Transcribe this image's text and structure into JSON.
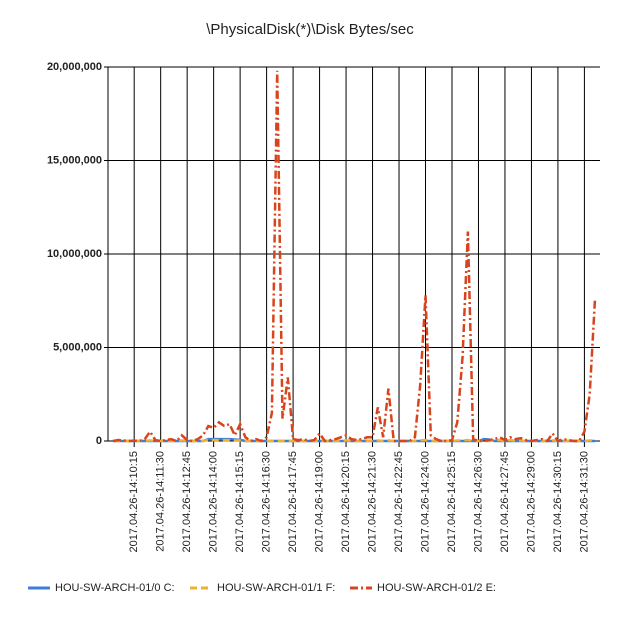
{
  "chart_data": {
    "type": "line",
    "title": "\\PhysicalDisk(*)\\Disk Bytes/sec",
    "categories": [
      null,
      null,
      null,
      null,
      "2017.04.26-14:10:15",
      null,
      null,
      null,
      null,
      "2017.04.26-14:11:30",
      null,
      null,
      null,
      null,
      "2017.04.26-14:12:45",
      null,
      null,
      null,
      null,
      "2017.04.26-14:14:00",
      null,
      null,
      null,
      null,
      "2017.04.26-14:15:15",
      null,
      null,
      null,
      null,
      "2017.04.26-14:16:30",
      null,
      null,
      null,
      null,
      "2017.04.26-14:17:45",
      null,
      null,
      null,
      null,
      "2017.04.26-14:19:00",
      null,
      null,
      null,
      null,
      "2017.04.26-14:20:15",
      null,
      null,
      null,
      null,
      "2017.04.26-14:21:30",
      null,
      null,
      null,
      null,
      "2017.04.26-14:22:45",
      null,
      null,
      null,
      null,
      "2017.04.26-14:24:00",
      null,
      null,
      null,
      null,
      "2017.04.26-14:25:15",
      null,
      null,
      null,
      null,
      "2017.04.26-14:26:30",
      null,
      null,
      null,
      null,
      "2017.04.26-14:27:45",
      null,
      null,
      null,
      null,
      "2017.04.26-14:29:00",
      null,
      null,
      null,
      null,
      "2017.04.26-14:30:15",
      null,
      null,
      null,
      null,
      "2017.04.26-14:31:30",
      null,
      null
    ],
    "series": [
      {
        "name": "HOU-SW-ARCH-01/0 C:",
        "color": "#3c7fd8",
        "style": "solid",
        "values": [
          0,
          0,
          0,
          0,
          0,
          0,
          0,
          0,
          0,
          0,
          0,
          0,
          0,
          0,
          0,
          0,
          0,
          0,
          100000,
          100000,
          100000,
          100000,
          100000,
          80000,
          60000,
          0,
          0,
          0,
          0,
          0,
          0,
          0,
          0,
          0,
          0,
          0,
          0,
          0,
          0,
          0,
          0,
          0,
          0,
          0,
          0,
          0,
          0,
          0,
          0,
          0,
          0,
          0,
          0,
          0,
          0,
          0,
          0,
          0,
          0,
          0,
          0,
          0,
          0,
          0,
          0,
          0,
          0,
          0,
          0,
          0,
          100000,
          80000,
          0,
          0,
          0,
          0,
          0,
          0,
          0,
          0,
          0,
          0,
          0,
          0,
          0,
          0,
          0,
          0,
          0,
          0,
          0,
          0
        ]
      },
      {
        "name": "HOU-SW-ARCH-01/1 F:",
        "color": "#f0b030",
        "style": "dashed",
        "values": [
          0,
          0,
          0,
          0,
          0,
          0,
          0,
          30000,
          0,
          0,
          0,
          0,
          0,
          30000,
          0,
          0,
          0,
          0,
          50000,
          50000,
          50000,
          50000,
          50000,
          30000,
          30000,
          0,
          0,
          0,
          0,
          0,
          0,
          0,
          0,
          0,
          0,
          0,
          0,
          0,
          0,
          30000,
          0,
          0,
          0,
          0,
          30000,
          0,
          0,
          0,
          0,
          0,
          30000,
          0,
          30000,
          0,
          0,
          0,
          0,
          0,
          30000,
          50000,
          0,
          0,
          0,
          0,
          0,
          30000,
          30000,
          50000,
          0,
          0,
          0,
          0,
          30000,
          50000,
          0,
          50000,
          0,
          30000,
          0,
          0,
          0,
          0,
          0,
          30000,
          0,
          0,
          0,
          0,
          0,
          0,
          30000,
          30000
        ]
      },
      {
        "name": "HOU-SW-ARCH-01/2 E:",
        "color": "#d9441c",
        "style": "dashdot",
        "values": [
          0,
          50000,
          30000,
          0,
          20000,
          0,
          100000,
          500000,
          50000,
          0,
          50000,
          100000,
          0,
          300000,
          50000,
          0,
          100000,
          300000,
          800000,
          700000,
          1000000,
          800000,
          900000,
          300000,
          900000,
          200000,
          0,
          100000,
          0,
          200000,
          1500000,
          19800000,
          1200000,
          3400000,
          100000,
          50000,
          100000,
          0,
          50000,
          400000,
          0,
          50000,
          100000,
          200000,
          300000,
          100000,
          50000,
          100000,
          200000,
          200000,
          1800000,
          200000,
          2800000,
          0,
          0,
          0,
          0,
          200000,
          3000000,
          7800000,
          300000,
          100000,
          0,
          0,
          50000,
          1000000,
          4500000,
          11200000,
          100000,
          0,
          0,
          50000,
          100000,
          200000,
          50000,
          200000,
          100000,
          150000,
          50000,
          0,
          50000,
          100000,
          0,
          400000,
          0,
          100000,
          50000,
          0,
          0,
          500000,
          2500000,
          7600000
        ]
      }
    ],
    "ylim": [
      0,
      20000000
    ],
    "yticks": [
      0,
      {
        "value": 5000000,
        "label": "5,000,000"
      },
      {
        "value": 10000000,
        "label": "10,000,000"
      },
      {
        "value": 15000000,
        "label": "15,000,000"
      },
      {
        "value": 20000000,
        "label": "20,000,000"
      }
    ],
    "grid": true,
    "legend": "bottom"
  }
}
